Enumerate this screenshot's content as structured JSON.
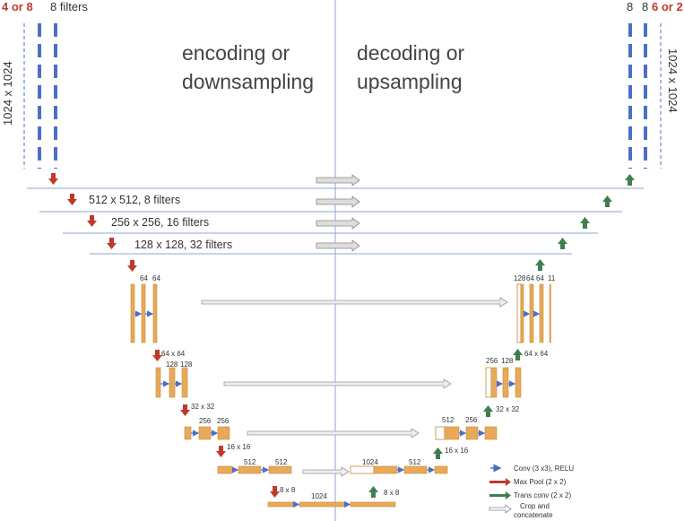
{
  "titles": {
    "encoding_line1": "encoding or",
    "encoding_line2": "downsampling",
    "decoding_line1": "decoding or",
    "decoding_line2": "upsampling"
  },
  "top_left": {
    "count": "4 or 8",
    "filters": "8 filters",
    "size": "1024 x 1024"
  },
  "top_right": {
    "a": "8",
    "b": "8",
    "count": "6 or 2",
    "size": "1024 x 1024"
  },
  "levels": {
    "l1": "512 x 512, 8 filters",
    "l2": "256 x 256, 16 filters",
    "l3": "128 x 128, 32 filters"
  },
  "unet": {
    "enc1": [
      "64",
      "64"
    ],
    "dec1": [
      "128",
      "64",
      "64",
      "11"
    ],
    "size2": "64 x 64",
    "enc2": [
      "128",
      "128"
    ],
    "dec2": [
      "256",
      "128"
    ],
    "size3": "32 x 32",
    "enc3": [
      "256",
      "256"
    ],
    "dec3": [
      "512",
      "256"
    ],
    "size4": "16 x 16",
    "enc4": [
      "512",
      "512"
    ],
    "dec4": [
      "1024",
      "512"
    ],
    "size5": "8 x 8",
    "bottom": "1024"
  },
  "legend": {
    "conv": "Conv (3 x3), RELU",
    "pool": "Max Pool (2 x 2)",
    "trans": "Trans conv (2 x 2)",
    "crop1": "Crop and",
    "crop2": "concatenate"
  },
  "colors": {
    "orange": "#e8a95a",
    "orange_stroke": "#c98a35",
    "blue": "#4a6fc9",
    "red": "#c0392b",
    "green": "#3f7f4f",
    "gray": "#bbbbbb"
  }
}
